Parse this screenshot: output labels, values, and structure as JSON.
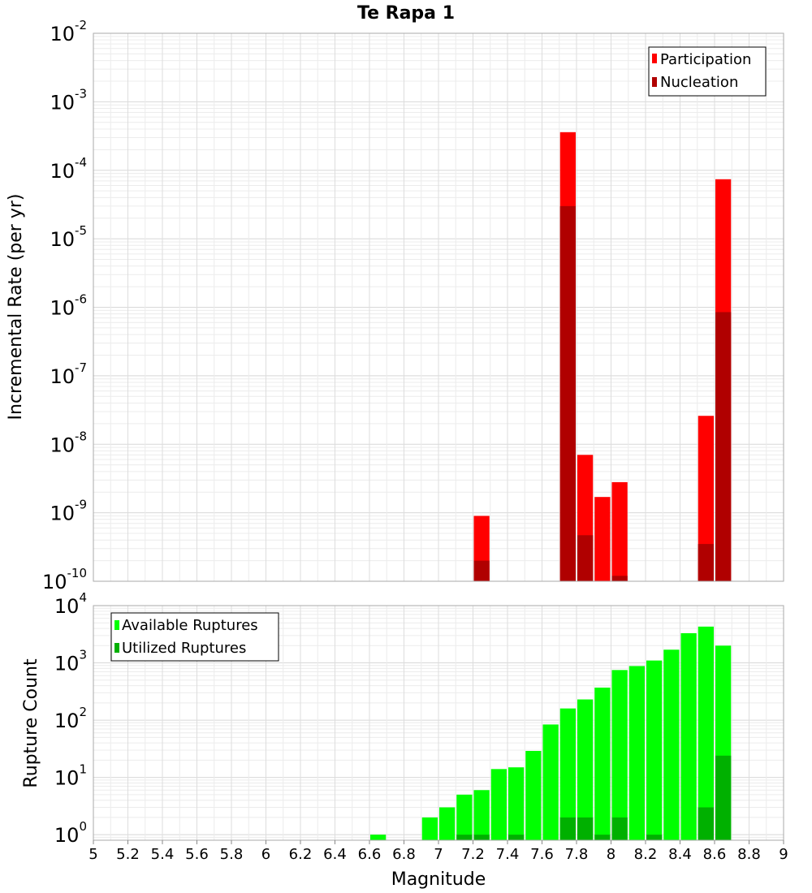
{
  "chart_data": [
    {
      "type": "bar",
      "title": "Te Rapa 1",
      "xlabel": "",
      "ylabel": "Incremental Rate (per yr)",
      "yscale": "log",
      "xlim": [
        5,
        9
      ],
      "ylim": [
        1e-10,
        0.01
      ],
      "bin_width": 0.1,
      "y_ticks": [
        {
          "base": "10",
          "exp": "-10",
          "value": 1e-10
        },
        {
          "base": "10",
          "exp": "-9",
          "value": 1e-09
        },
        {
          "base": "10",
          "exp": "-8",
          "value": 1e-08
        },
        {
          "base": "10",
          "exp": "-7",
          "value": 1e-07
        },
        {
          "base": "10",
          "exp": "-6",
          "value": 1e-06
        },
        {
          "base": "10",
          "exp": "-5",
          "value": 1e-05
        },
        {
          "base": "10",
          "exp": "-4",
          "value": 0.0001
        },
        {
          "base": "10",
          "exp": "-3",
          "value": 0.001
        },
        {
          "base": "10",
          "exp": "-2",
          "value": 0.01
        }
      ],
      "legend_position": "top-right",
      "series": [
        {
          "name": "Participation",
          "color": "#ff0000",
          "x": [
            7.25,
            7.75,
            7.85,
            7.95,
            8.05,
            8.55,
            8.65
          ],
          "values": [
            9e-10,
            0.00036,
            7e-09,
            1.7e-09,
            2.8e-09,
            2.6e-08,
            7.4e-05
          ]
        },
        {
          "name": "Nucleation",
          "color": "#b00000",
          "x": [
            7.25,
            7.75,
            7.85,
            8.05,
            8.55,
            8.65
          ],
          "values": [
            2e-10,
            3e-05,
            4.7e-10,
            1.2e-10,
            3.5e-10,
            8.5e-07
          ]
        }
      ]
    },
    {
      "type": "bar",
      "title": "",
      "xlabel": "Magnitude",
      "ylabel": "Rupture Count",
      "yscale": "log",
      "xlim": [
        5,
        9
      ],
      "ylim": [
        0.8,
        10000
      ],
      "bin_width": 0.1,
      "x_ticks": [
        "5",
        "5.2",
        "5.4",
        "5.6",
        "5.8",
        "6",
        "6.2",
        "6.4",
        "6.6",
        "6.8",
        "7",
        "7.2",
        "7.4",
        "7.6",
        "7.8",
        "8",
        "8.2",
        "8.4",
        "8.6",
        "8.8",
        "9"
      ],
      "y_ticks": [
        {
          "base": "10",
          "exp": "0",
          "value": 1
        },
        {
          "base": "10",
          "exp": "1",
          "value": 10
        },
        {
          "base": "10",
          "exp": "2",
          "value": 100
        },
        {
          "base": "10",
          "exp": "3",
          "value": 1000
        },
        {
          "base": "10",
          "exp": "4",
          "value": 10000
        }
      ],
      "legend_position": "top-left",
      "series": [
        {
          "name": "Available Ruptures",
          "color": "#00ff00",
          "x": [
            6.65,
            6.95,
            7.05,
            7.15,
            7.25,
            7.35,
            7.45,
            7.55,
            7.65,
            7.75,
            7.85,
            7.95,
            8.05,
            8.15,
            8.25,
            8.35,
            8.45,
            8.55,
            8.65
          ],
          "values": [
            1,
            2,
            3,
            5,
            6,
            14,
            15,
            29,
            84,
            160,
            230,
            370,
            750,
            880,
            1100,
            1700,
            3300,
            4300,
            2000
          ]
        },
        {
          "name": "Utilized Ruptures",
          "color": "#00b000",
          "x": [
            7.15,
            7.25,
            7.45,
            7.75,
            7.85,
            7.95,
            8.05,
            8.25,
            8.55,
            8.65
          ],
          "values": [
            1,
            1,
            1,
            2,
            2,
            1,
            2,
            1,
            3,
            24
          ]
        }
      ]
    }
  ]
}
